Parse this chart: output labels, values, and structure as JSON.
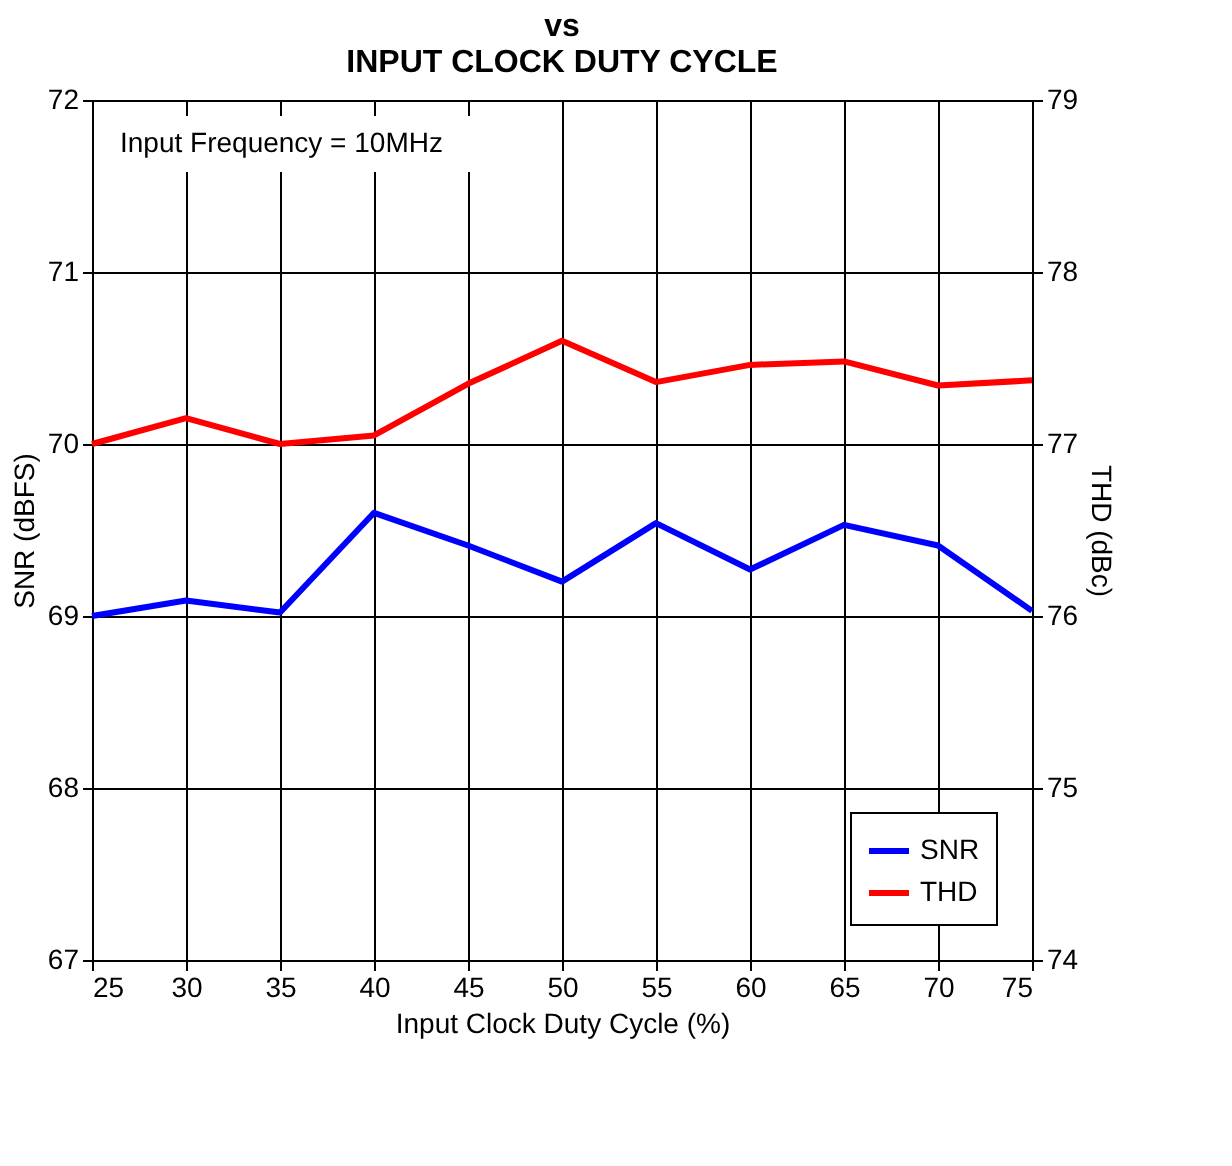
{
  "chart_data": {
    "type": "line",
    "title": "vs\nINPUT CLOCK DUTY CYCLE",
    "xlabel": "Input Clock Duty Cycle (%)",
    "ylabel": "SNR (dBFS)",
    "y2label": "THD (dBc)",
    "x": [
      25,
      30,
      35,
      40,
      45,
      50,
      55,
      60,
      65,
      70,
      75
    ],
    "series": [
      {
        "name": "SNR",
        "color": "#0000ff",
        "values": [
          69.0,
          69.09,
          69.02,
          69.6,
          69.41,
          69.2,
          69.54,
          69.27,
          69.53,
          69.41,
          69.03
        ]
      },
      {
        "name": "THD",
        "color": "#ff0000",
        "axis": "y2",
        "values": [
          77.0,
          77.15,
          77.0,
          77.05,
          77.35,
          77.6,
          77.36,
          77.46,
          77.48,
          77.34,
          77.37
        ]
      }
    ],
    "xlim": [
      25,
      75
    ],
    "xticks": [
      25,
      30,
      35,
      40,
      45,
      50,
      55,
      60,
      65,
      70,
      75
    ],
    "ylim": [
      67,
      72
    ],
    "yticks": [
      67,
      68,
      69,
      70,
      71,
      72
    ],
    "y2lim": [
      74,
      79
    ],
    "y2ticks": [
      74,
      75,
      76,
      77,
      78,
      79
    ],
    "annotations": [
      "Input Frequency = 10MHz"
    ],
    "grid": true,
    "legend": "bottom right",
    "marker": "none",
    "line_style": "solid"
  }
}
